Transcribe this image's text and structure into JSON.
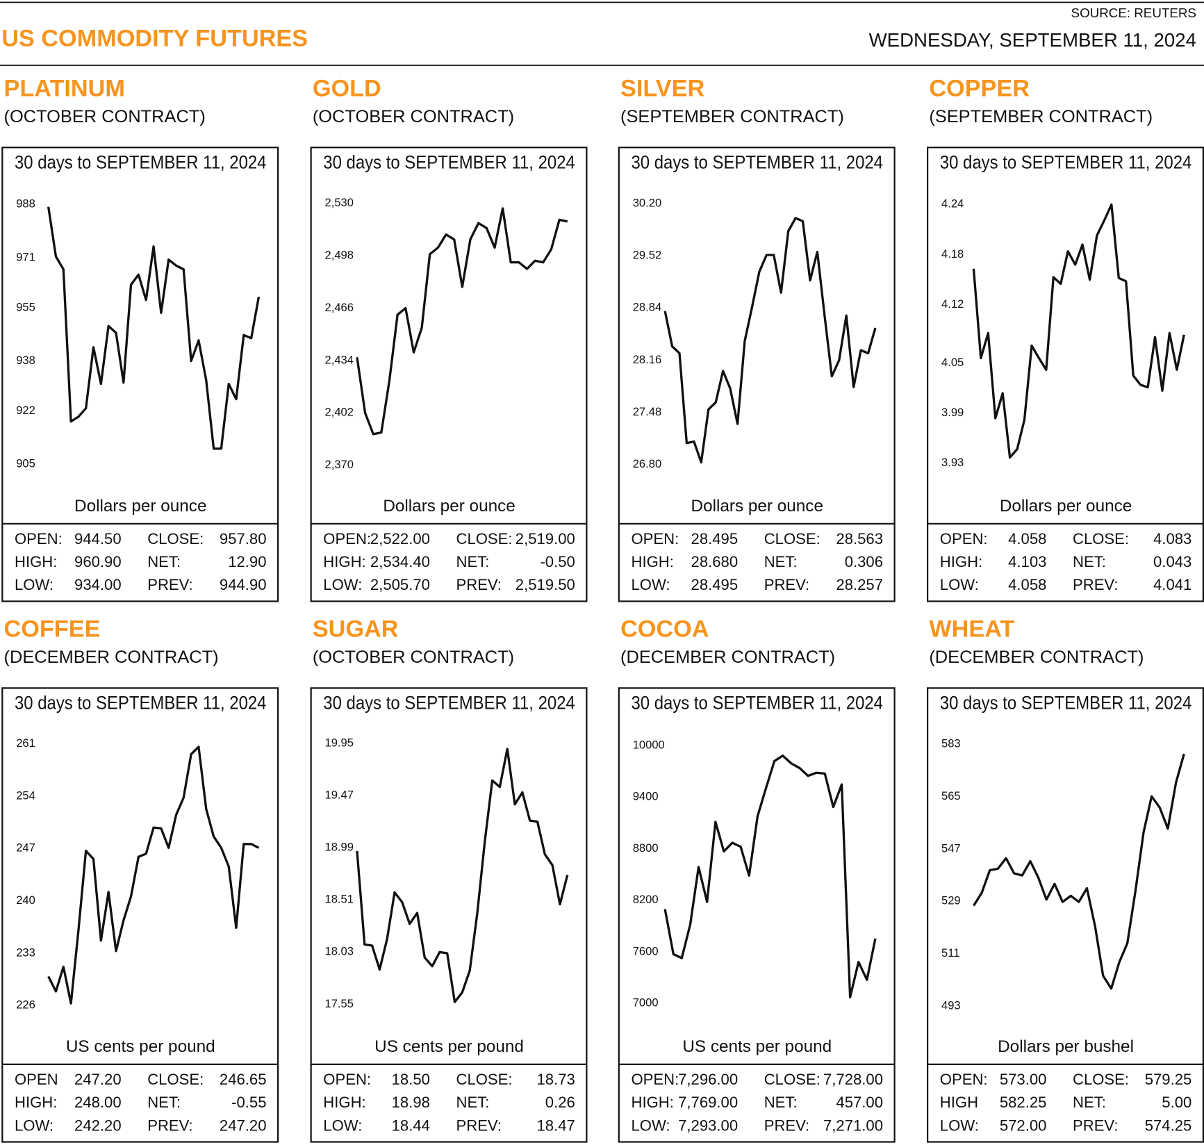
{
  "header": {
    "title": "US COMMODITY FUTURES",
    "source": "SOURCE: REUTERS",
    "date": "WEDNESDAY, SEPTEMBER 11, 2024"
  },
  "chart_data": [
    {
      "type": "line",
      "title": "PLATINUM",
      "subtitle": "(OCTOBER CONTRACT)",
      "caption": "30 days to SEPTEMBER 11, 2024",
      "y_label": "Dollars per ounce",
      "color": "#111111",
      "values": [
        987.3,
        971.4,
        967.3,
        918.7,
        920.2,
        922.9,
        942.4,
        930.7,
        949.2,
        947,
        931.1,
        962.4,
        965.6,
        957.5,
        974.6,
        953.4,
        970.4,
        968.5,
        967.3,
        938,
        944.6,
        931.9,
        910,
        910,
        930.7,
        925.8,
        946.3,
        945.3,
        958.5
      ],
      "ylim": [
        900,
        992
      ],
      "yticks": [
        905,
        922,
        938,
        955,
        971,
        988
      ],
      "stats": {
        "rows": [
          [
            "OPEN:",
            "944.50",
            "CLOSE:",
            "957.80"
          ],
          [
            "HIGH:",
            "960.90",
            "NET:",
            "12.90"
          ],
          [
            "LOW:",
            "934.00",
            "PREV:",
            "944.90"
          ]
        ]
      }
    },
    {
      "type": "line",
      "title": "GOLD",
      "subtitle": "(OCTOBER CONTRACT)",
      "caption": "30 days to SEPTEMBER 11, 2024",
      "y_label": "Dollars per ounce",
      "color": "#111111",
      "values": [
        2436,
        2402,
        2389,
        2390,
        2422,
        2462,
        2466,
        2439,
        2454,
        2499,
        2503,
        2511,
        2508,
        2479,
        2508,
        2518,
        2515,
        2503,
        2527,
        2494,
        2494,
        2490,
        2495,
        2494,
        2502,
        2520,
        2519
      ],
      "ylim": [
        2361,
        2537
      ],
      "yticks": [
        {
          "value": 2370,
          "label": "2,370"
        },
        {
          "value": 2402,
          "label": "2,402"
        },
        {
          "value": 2434,
          "label": "2,434"
        },
        {
          "value": 2466,
          "label": "2,466"
        },
        {
          "value": 2498,
          "label": "2,498"
        },
        {
          "value": 2530,
          "label": "2,530"
        }
      ],
      "stats": {
        "rows": [
          [
            "OPEN:",
            "2,522.00",
            "CLOSE:",
            "2,519.00"
          ],
          [
            "HIGH:",
            "2,534.40",
            "NET:",
            "-0.50"
          ],
          [
            "LOW:",
            "2,505.70",
            "PREV:",
            "2,519.50"
          ]
        ]
      }
    },
    {
      "type": "line",
      "title": "SILVER",
      "subtitle": "(SEPTEMBER CONTRACT)",
      "caption": "30 days to SEPTEMBER 11, 2024",
      "y_label": "Dollars per ounce",
      "color": "#111111",
      "values": [
        28.8,
        28.34,
        28.25,
        27.08,
        27.1,
        26.83,
        27.52,
        27.61,
        28.02,
        27.79,
        27.33,
        28.41,
        28.85,
        29.31,
        29.53,
        29.53,
        29.04,
        29.84,
        30.01,
        29.97,
        29.2,
        29.57,
        28.74,
        27.95,
        28.16,
        28.74,
        27.81,
        28.29,
        28.25,
        28.58
      ],
      "ylim": [
        26.6,
        30.35
      ],
      "yticks": [
        {
          "value": 26.8,
          "label": "26.80"
        },
        27.48,
        28.16,
        28.84,
        29.52,
        {
          "value": 30.2,
          "label": "30.20"
        }
      ],
      "stats": {
        "rows": [
          [
            "OPEN:",
            "28.495",
            "CLOSE:",
            "28.563"
          ],
          [
            "HIGH:",
            "28.680",
            "NET:",
            "0.306"
          ],
          [
            "LOW:",
            "28.495",
            "PREV:",
            "28.257"
          ]
        ]
      }
    },
    {
      "type": "line",
      "title": "COPPER",
      "subtitle": "(SEPTEMBER CONTRACT)",
      "caption": "30 days to SEPTEMBER 11, 2024",
      "y_label": "Dollars per ounce",
      "color": "#111111",
      "values": [
        4.163,
        4.056,
        4.086,
        3.984,
        4.014,
        3.937,
        3.947,
        3.982,
        4.071,
        4.056,
        4.042,
        4.153,
        4.145,
        4.184,
        4.168,
        4.192,
        4.15,
        4.203,
        4.221,
        4.24,
        4.152,
        4.148,
        4.035,
        4.024,
        4.021,
        4.081,
        4.017,
        4.086,
        4.042,
        4.084
      ],
      "ylim": [
        3.91,
        4.255
      ],
      "yticks": [
        3.93,
        3.99,
        4.05,
        4.12,
        4.18,
        4.24
      ],
      "stats": {
        "rows": [
          [
            "OPEN:",
            "4.058",
            "CLOSE:",
            "4.083"
          ],
          [
            "HIGH:",
            "4.103",
            "NET:",
            "0.043"
          ],
          [
            "LOW:",
            "4.058",
            "PREV:",
            "4.041"
          ]
        ]
      }
    },
    {
      "type": "line",
      "title": "COFFEE",
      "subtitle": "(DECEMBER CONTRACT)",
      "caption": "30 days to SEPTEMBER 11, 2024",
      "y_label": "US cents per pound",
      "color": "#111111",
      "values": [
        229.9,
        227.9,
        231.2,
        226.3,
        236,
        246.7,
        245.6,
        234.7,
        241.2,
        233.3,
        237.4,
        240.6,
        245.9,
        246.3,
        249.8,
        249.7,
        247.1,
        251.5,
        253.8,
        259.6,
        260.6,
        252.3,
        248.6,
        247.1,
        244.6,
        236.4,
        247.6,
        247.6,
        247.1
      ],
      "ylim": [
        224,
        262.5
      ],
      "yticks": [
        226,
        233,
        240,
        247,
        254,
        261
      ],
      "stats": {
        "rows": [
          [
            "OPEN",
            "247.20",
            "CLOSE:",
            "246.65"
          ],
          [
            "HIGH:",
            "248.00",
            "NET:",
            "-0.55"
          ],
          [
            "LOW:",
            "242.20",
            "PREV:",
            "247.20"
          ]
        ]
      }
    },
    {
      "type": "line",
      "title": "SUGAR",
      "subtitle": "(OCTOBER CONTRACT)",
      "caption": "30 days to SEPTEMBER 11, 2024",
      "y_label": "US cents per pound",
      "color": "#111111",
      "values": [
        18.96,
        18.1,
        18.09,
        17.87,
        18.15,
        18.58,
        18.49,
        18.29,
        18.39,
        17.98,
        17.9,
        18.03,
        18.02,
        17.57,
        17.66,
        17.86,
        18.39,
        19.05,
        19.61,
        19.55,
        19.9,
        19.39,
        19.5,
        19.24,
        19.23,
        18.93,
        18.83,
        18.47,
        18.74
      ],
      "ylim": [
        17.4,
        20.05
      ],
      "yticks": [
        17.55,
        18.03,
        18.51,
        18.99,
        19.47,
        19.95
      ],
      "stats": {
        "rows": [
          [
            "OPEN:",
            "18.50",
            "CLOSE:",
            "18.73"
          ],
          [
            "HIGH:",
            "18.98",
            "NET:",
            "0.26"
          ],
          [
            "LOW:",
            "18.44",
            "PREV:",
            "18.47"
          ]
        ]
      }
    },
    {
      "type": "line",
      "title": "COCOA",
      "subtitle": "(DECEMBER CONTRACT)",
      "caption": "30 days to SEPTEMBER 11, 2024",
      "y_label": "US cents per pound",
      "color": "#111111",
      "values": [
        8097,
        7572,
        7527,
        7917,
        8587,
        8180,
        9112,
        8768,
        8868,
        8822,
        8487,
        9176,
        9502,
        9819,
        9882,
        9792,
        9737,
        9647,
        9683,
        9674,
        9284,
        9547,
        7072,
        7482,
        7274,
        7753
      ],
      "ylim": [
        6800,
        10150
      ],
      "yticks": [
        7000,
        7600,
        8200,
        8800,
        9400,
        10000
      ],
      "stats": {
        "rows": [
          [
            "OPEN:",
            "7,296.00",
            "CLOSE:",
            "7,728.00"
          ],
          [
            "HIGH:",
            "7,769.00",
            "NET:",
            "457.00"
          ],
          [
            "LOW:",
            "7,293.00",
            "PREV:",
            "7,271.00"
          ]
        ]
      }
    },
    {
      "type": "line",
      "title": "WHEAT",
      "subtitle": "(DECEMBER CONTRACT)",
      "caption": "30 days to SEPTEMBER 11, 2024",
      "y_label": "Dollars per bushel",
      "color": "#111111",
      "values": [
        527.5,
        531.9,
        539.7,
        540.2,
        543.8,
        538.6,
        537.9,
        542.8,
        537.1,
        529.6,
        535,
        528.8,
        530.9,
        528.8,
        533.5,
        520.5,
        503.4,
        499,
        508.1,
        514.6,
        532.7,
        552.7,
        565.1,
        561.2,
        554,
        569.8,
        579.7
      ],
      "ylim": [
        488,
        587
      ],
      "yticks": [
        493,
        511,
        529,
        547,
        565,
        583
      ],
      "stats": {
        "rows": [
          [
            "OPEN:",
            "573.00",
            "CLOSE:",
            "579.25"
          ],
          [
            "HIGH",
            "582.25",
            "NET:",
            "5.00"
          ],
          [
            "LOW:",
            "572.00",
            "PREV:",
            "574.25"
          ]
        ]
      }
    }
  ]
}
